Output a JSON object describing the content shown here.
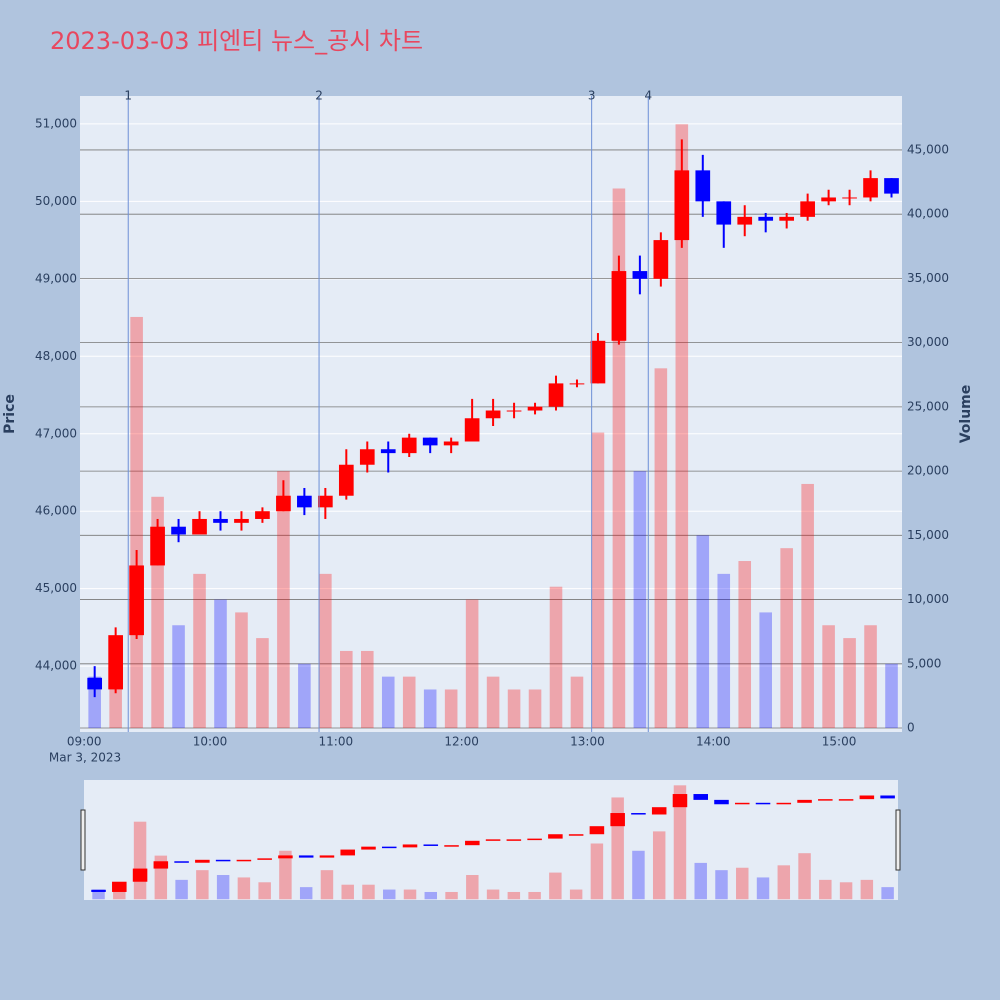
{
  "chart_data": {
    "type": "candlestick",
    "title": "2023-03-03 피엔티 뉴스_공시 차트",
    "y_label": "Price",
    "y2_label": "Volume",
    "date_label": "Mar 3, 2023",
    "increasing_color": "#ff0000",
    "decreasing_color": "#0000ff",
    "x": [
      "09:00",
      "09:10",
      "09:20",
      "09:30",
      "09:40",
      "09:50",
      "10:00",
      "10:10",
      "10:20",
      "10:30",
      "10:40",
      "10:50",
      "11:00",
      "11:10",
      "11:20",
      "11:30",
      "11:40",
      "11:50",
      "12:00",
      "12:10",
      "12:20",
      "12:30",
      "12:40",
      "12:50",
      "13:00",
      "13:10",
      "13:20",
      "13:30",
      "13:40",
      "13:50",
      "14:00",
      "14:10",
      "14:20",
      "14:30",
      "14:40",
      "14:50",
      "15:00",
      "15:10",
      "15:20"
    ],
    "open": [
      43850,
      43700,
      44400,
      45300,
      45800,
      45700,
      45900,
      45850,
      45900,
      46000,
      46200,
      46050,
      46200,
      46600,
      46800,
      46750,
      46950,
      46850,
      46900,
      47200,
      47300,
      47300,
      47350,
      47650,
      47650,
      48200,
      49100,
      49000,
      49500,
      50400,
      50000,
      49700,
      49800,
      49750,
      49800,
      50000,
      50050,
      50050,
      50300
    ],
    "high": [
      44000,
      44500,
      45500,
      45900,
      45900,
      46000,
      46000,
      46000,
      46050,
      46400,
      46300,
      46300,
      46800,
      46900,
      46900,
      47000,
      46950,
      46950,
      47450,
      47450,
      47400,
      47400,
      47750,
      47700,
      48300,
      49300,
      49300,
      49600,
      50800,
      50600,
      50000,
      49950,
      49850,
      49850,
      50100,
      50150,
      50150,
      50400,
      50300
    ],
    "low": [
      43600,
      43650,
      44350,
      45300,
      45600,
      45750,
      45750,
      45750,
      45850,
      46000,
      45950,
      45900,
      46150,
      46500,
      46500,
      46700,
      46750,
      46750,
      46900,
      47100,
      47200,
      47250,
      47300,
      47600,
      47650,
      48150,
      48800,
      48900,
      49400,
      49800,
      49400,
      49550,
      49600,
      49650,
      49750,
      49950,
      49950,
      50000,
      50050
    ],
    "close": [
      43700,
      44400,
      45300,
      45800,
      45700,
      45900,
      45850,
      45900,
      46000,
      46200,
      46050,
      46200,
      46600,
      46800,
      46750,
      46950,
      46850,
      46900,
      47200,
      47300,
      47300,
      47350,
      47650,
      47650,
      48200,
      49100,
      49000,
      49500,
      50400,
      50000,
      49700,
      49800,
      49750,
      49800,
      50000,
      50050,
      50050,
      50300,
      50100
    ],
    "volume": [
      4000,
      6000,
      32000,
      18000,
      8000,
      12000,
      10000,
      9000,
      7000,
      20000,
      5000,
      12000,
      6000,
      6000,
      4000,
      4000,
      3000,
      3000,
      10000,
      4000,
      3000,
      3000,
      11000,
      4000,
      23000,
      42000,
      20000,
      28000,
      47000,
      15000,
      12000,
      13000,
      9000,
      14000,
      19000,
      8000,
      7000,
      8000,
      5000
    ],
    "xlim": [
      "08:58",
      "15:30"
    ],
    "xticks": [
      "09:00",
      "10:00",
      "11:00",
      "12:00",
      "13:00",
      "14:00",
      "15:00"
    ],
    "ylim": [
      43150,
      51360
    ],
    "yticks": [
      {
        "value": 44000,
        "label": "44,000"
      },
      {
        "value": 45000,
        "label": "45,000"
      },
      {
        "value": 46000,
        "label": "46,000"
      },
      {
        "value": 47000,
        "label": "47,000"
      },
      {
        "value": 48000,
        "label": "48,000"
      },
      {
        "value": 49000,
        "label": "49,000"
      },
      {
        "value": 50000,
        "label": "50,000"
      },
      {
        "value": 51000,
        "label": "51,000"
      }
    ],
    "y2lim": [
      -310,
      49200
    ],
    "y2ticks": [
      0,
      {
        "value": 5000,
        "label": "5,000"
      },
      {
        "value": 10000,
        "label": "10,000"
      },
      {
        "value": 15000,
        "label": "15,000"
      },
      {
        "value": 20000,
        "label": "20,000"
      },
      {
        "value": 25000,
        "label": "25,000"
      },
      {
        "value": 30000,
        "label": "30,000"
      },
      {
        "value": 35000,
        "label": "35,000"
      },
      {
        "value": 40000,
        "label": "40,000"
      },
      {
        "value": 45000,
        "label": "45,000"
      }
    ],
    "news": [
      {
        "label": "1",
        "x": "09:21"
      },
      {
        "label": "2",
        "x": "10:52"
      },
      {
        "label": "3",
        "x": "13:02"
      },
      {
        "label": "4",
        "x": "13:29"
      }
    ]
  }
}
